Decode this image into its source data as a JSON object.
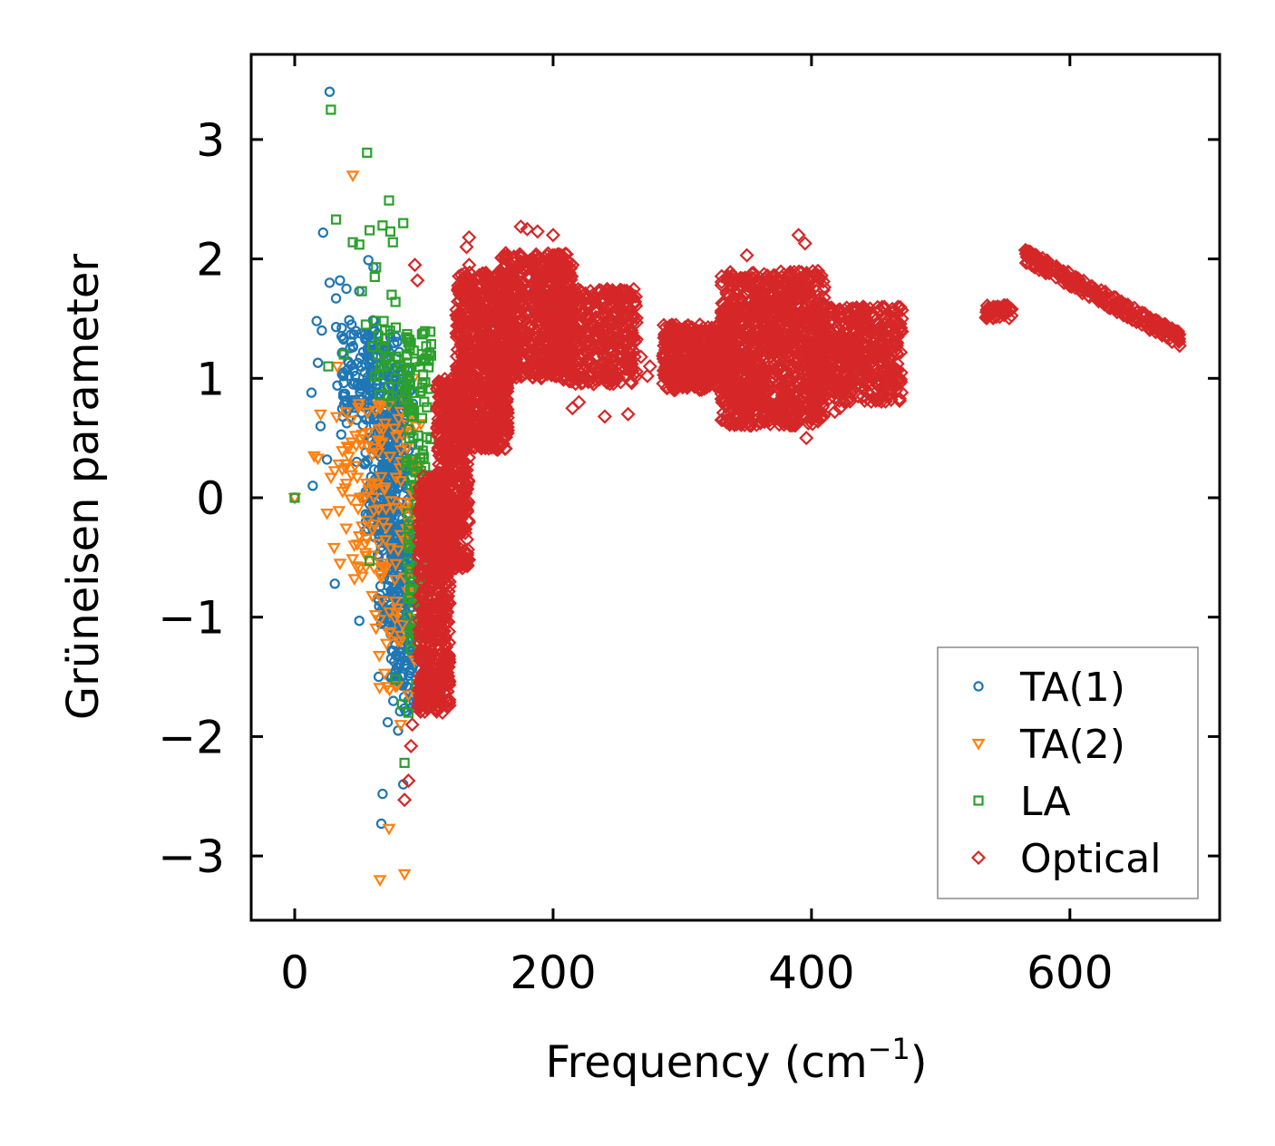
{
  "chart_data": {
    "type": "scatter",
    "xlabel": "Frequency (cm",
    "xlabel_sup": "−1",
    "xlabel_end": ")",
    "ylabel": "Grüneisen parameter",
    "xlim": [
      -17,
      715
    ],
    "ylim": [
      -3.55,
      3.72
    ],
    "x_ticks": [
      0,
      200,
      400,
      600
    ],
    "y_ticks": [
      3,
      2,
      1,
      0,
      -1,
      -2,
      -3
    ],
    "x_tick_labels": [
      "0",
      "200",
      "400",
      "600"
    ],
    "y_tick_labels": [
      "3",
      "2",
      "1",
      "0",
      "−1",
      "−2",
      "−3"
    ],
    "legend_position": "lower-right",
    "series": [
      {
        "name": "TA(1)",
        "marker": "circle",
        "color": "#1f77b4",
        "points": [
          [
            0,
            0
          ],
          [
            14,
            0.1
          ],
          [
            27,
            3.4
          ],
          [
            22,
            2.22
          ],
          [
            27,
            1.8
          ],
          [
            32,
            1.67
          ],
          [
            35,
            1.82
          ],
          [
            40,
            1.75
          ],
          [
            50,
            1.73
          ],
          [
            57,
            1.99
          ],
          [
            61,
            1.93
          ],
          [
            17,
            1.48
          ],
          [
            21,
            1.4
          ],
          [
            32,
            1.43
          ],
          [
            18,
            1.13
          ],
          [
            20,
            0.6
          ],
          [
            13,
            0.88
          ],
          [
            33,
            0.94
          ],
          [
            36,
            0.53
          ],
          [
            25,
            0.32
          ],
          [
            31,
            -0.72
          ],
          [
            50,
            -1.03
          ],
          [
            65,
            -1.5
          ],
          [
            72,
            -1.88
          ],
          [
            68,
            -2.48
          ],
          [
            67,
            -2.73
          ],
          [
            84,
            -2.4
          ],
          [
            80,
            -1.95
          ],
          [
            44,
            1.45
          ],
          [
            48,
            0.3
          ],
          [
            55,
            0.05
          ],
          [
            62,
            -0.33
          ],
          [
            66,
            0.55
          ],
          [
            75,
            -0.4
          ],
          [
            70,
            -0.85
          ],
          [
            81,
            1.22
          ],
          [
            85,
            -1.2
          ],
          [
            88,
            -1.7
          ],
          [
            90,
            0.9
          ],
          [
            92,
            -1.4
          ]
        ],
        "bands": [
          {
            "x": [
              36,
              66
            ],
            "y": [
              0.6,
              1.5
            ],
            "n": 90
          },
          {
            "x": [
              54,
              80
            ],
            "y": [
              -0.3,
              1.4
            ],
            "n": 170
          },
          {
            "x": [
              64,
              88
            ],
            "y": [
              -1.1,
              0.8
            ],
            "n": 220
          },
          {
            "x": [
              74,
              94
            ],
            "y": [
              -1.8,
              -0.2
            ],
            "n": 160
          },
          {
            "x": [
              70,
              92
            ],
            "y": [
              -0.6,
              1.1
            ],
            "n": 90
          }
        ]
      },
      {
        "name": "TA(2)",
        "marker": "triangle-down",
        "color": "#ff7f0e",
        "points": [
          [
            0,
            0
          ],
          [
            45,
            2.7
          ],
          [
            66,
            -3.2
          ],
          [
            73,
            -2.77
          ],
          [
            85,
            -3.15
          ],
          [
            18,
            0.33
          ],
          [
            20,
            0.7
          ],
          [
            28,
            0.17
          ],
          [
            35,
            -0.55
          ],
          [
            25,
            -0.13
          ],
          [
            33,
            1.1
          ],
          [
            15,
            0.35
          ],
          [
            40,
            0.12
          ],
          [
            50,
            -0.32
          ],
          [
            55,
            -0.58
          ],
          [
            60,
            -0.82
          ],
          [
            66,
            -1.02
          ],
          [
            71,
            -1.22
          ],
          [
            78,
            -1.58
          ],
          [
            82,
            -1.9
          ],
          [
            88,
            -0.2
          ],
          [
            94,
            0.6
          ],
          [
            96,
            0.25
          ],
          [
            92,
            1.0
          ],
          [
            85,
            0.82
          ]
        ],
        "bands": [
          {
            "x": [
              30,
              70
            ],
            "y": [
              -0.7,
              0.8
            ],
            "n": 70
          },
          {
            "x": [
              60,
              98
            ],
            "y": [
              -1.7,
              0.8
            ],
            "n": 90
          }
        ]
      },
      {
        "name": "LA",
        "marker": "square",
        "color": "#2ca02c",
        "points": [
          [
            0,
            0
          ],
          [
            28,
            3.25
          ],
          [
            56,
            2.89
          ],
          [
            73,
            2.49
          ],
          [
            32,
            2.33
          ],
          [
            45,
            2.14
          ],
          [
            50,
            2.12
          ],
          [
            58,
            2.24
          ],
          [
            68,
            2.28
          ],
          [
            76,
            2.14
          ],
          [
            84,
            2.3
          ],
          [
            74,
            2.23
          ],
          [
            62,
            1.85
          ],
          [
            52,
            1.73
          ],
          [
            63,
            1.93
          ],
          [
            75,
            1.7
          ],
          [
            78,
            1.64
          ],
          [
            58,
            -0.53
          ],
          [
            78,
            -1.52
          ],
          [
            83,
            -1.73
          ],
          [
            85,
            -2.22
          ],
          [
            88,
            -1.8
          ],
          [
            94,
            -1.56
          ],
          [
            98,
            -1.7
          ],
          [
            55,
            1.45
          ],
          [
            70,
            1.4
          ],
          [
            88,
            1.3
          ],
          [
            38,
            1.2
          ],
          [
            26,
            1.1
          ],
          [
            90,
            -1.2
          ],
          [
            96,
            -0.9
          ]
        ],
        "bands": [
          {
            "x": [
              86,
              106
            ],
            "y": [
              -1.3,
              1.4
            ],
            "n": 150
          },
          {
            "x": [
              60,
              90
            ],
            "y": [
              0.8,
              1.5
            ],
            "n": 40
          }
        ]
      },
      {
        "name": "Optical",
        "marker": "diamond",
        "color": "#d62728",
        "points": [
          [
            93,
            1.95
          ],
          [
            95,
            1.82
          ],
          [
            85,
            -2.53
          ],
          [
            88,
            -2.37
          ],
          [
            90,
            -2.08
          ],
          [
            91,
            -1.9
          ],
          [
            100,
            -1.65
          ],
          [
            105,
            -1.35
          ],
          [
            108,
            -1.5
          ],
          [
            135,
            2.18
          ],
          [
            133,
            2.1
          ],
          [
            135,
            1.95
          ],
          [
            175,
            2.27
          ],
          [
            180,
            2.25
          ],
          [
            188,
            2.23
          ],
          [
            200,
            2.2
          ],
          [
            215,
            1.95
          ],
          [
            240,
            1.4
          ],
          [
            255,
            1.5
          ],
          [
            255,
            1.3
          ],
          [
            262,
            1.35
          ],
          [
            268,
            1.18
          ],
          [
            273,
            1.02
          ],
          [
            275,
            1.1
          ],
          [
            350,
            2.03
          ],
          [
            390,
            2.2
          ],
          [
            395,
            2.13
          ],
          [
            405,
            1.9
          ],
          [
            396,
            0.5
          ],
          [
            418,
            0.72
          ],
          [
            422,
            0.75
          ],
          [
            440,
            1.6
          ],
          [
            470,
            1.57
          ],
          [
            220,
            0.8
          ],
          [
            215,
            0.75
          ],
          [
            240,
            0.68
          ],
          [
            258,
            0.7
          ],
          [
            470,
            1.5
          ]
        ],
        "bands": [
          {
            "x": [
              96,
              120
            ],
            "y": [
              -1.8,
              0.2
            ],
            "n": 650
          },
          {
            "x": [
              110,
              135
            ],
            "y": [
              -0.6,
              1.0
            ],
            "n": 550
          },
          {
            "x": [
              125,
              165
            ],
            "y": [
              0.4,
              1.9
            ],
            "n": 800
          },
          {
            "x": [
              160,
              215
            ],
            "y": [
              1.0,
              2.05
            ],
            "n": 650
          },
          {
            "x": [
              200,
              265
            ],
            "y": [
              0.95,
              1.75
            ],
            "n": 450
          },
          {
            "x": [
              285,
              340
            ],
            "y": [
              0.9,
              1.45
            ],
            "n": 500
          },
          {
            "x": [
              330,
              410
            ],
            "y": [
              0.6,
              1.9
            ],
            "n": 1100
          },
          {
            "x": [
              400,
              470
            ],
            "y": [
              0.8,
              1.6
            ],
            "n": 550
          },
          {
            "x": [
              535,
              555
            ],
            "y": [
              1.5,
              1.62
            ],
            "n": 50
          }
        ],
        "curves": [
          {
            "x": [
              565,
              685
            ],
            "y": [
              2.03,
              1.33
            ],
            "spread": 0.06,
            "n": 260
          }
        ]
      }
    ]
  }
}
